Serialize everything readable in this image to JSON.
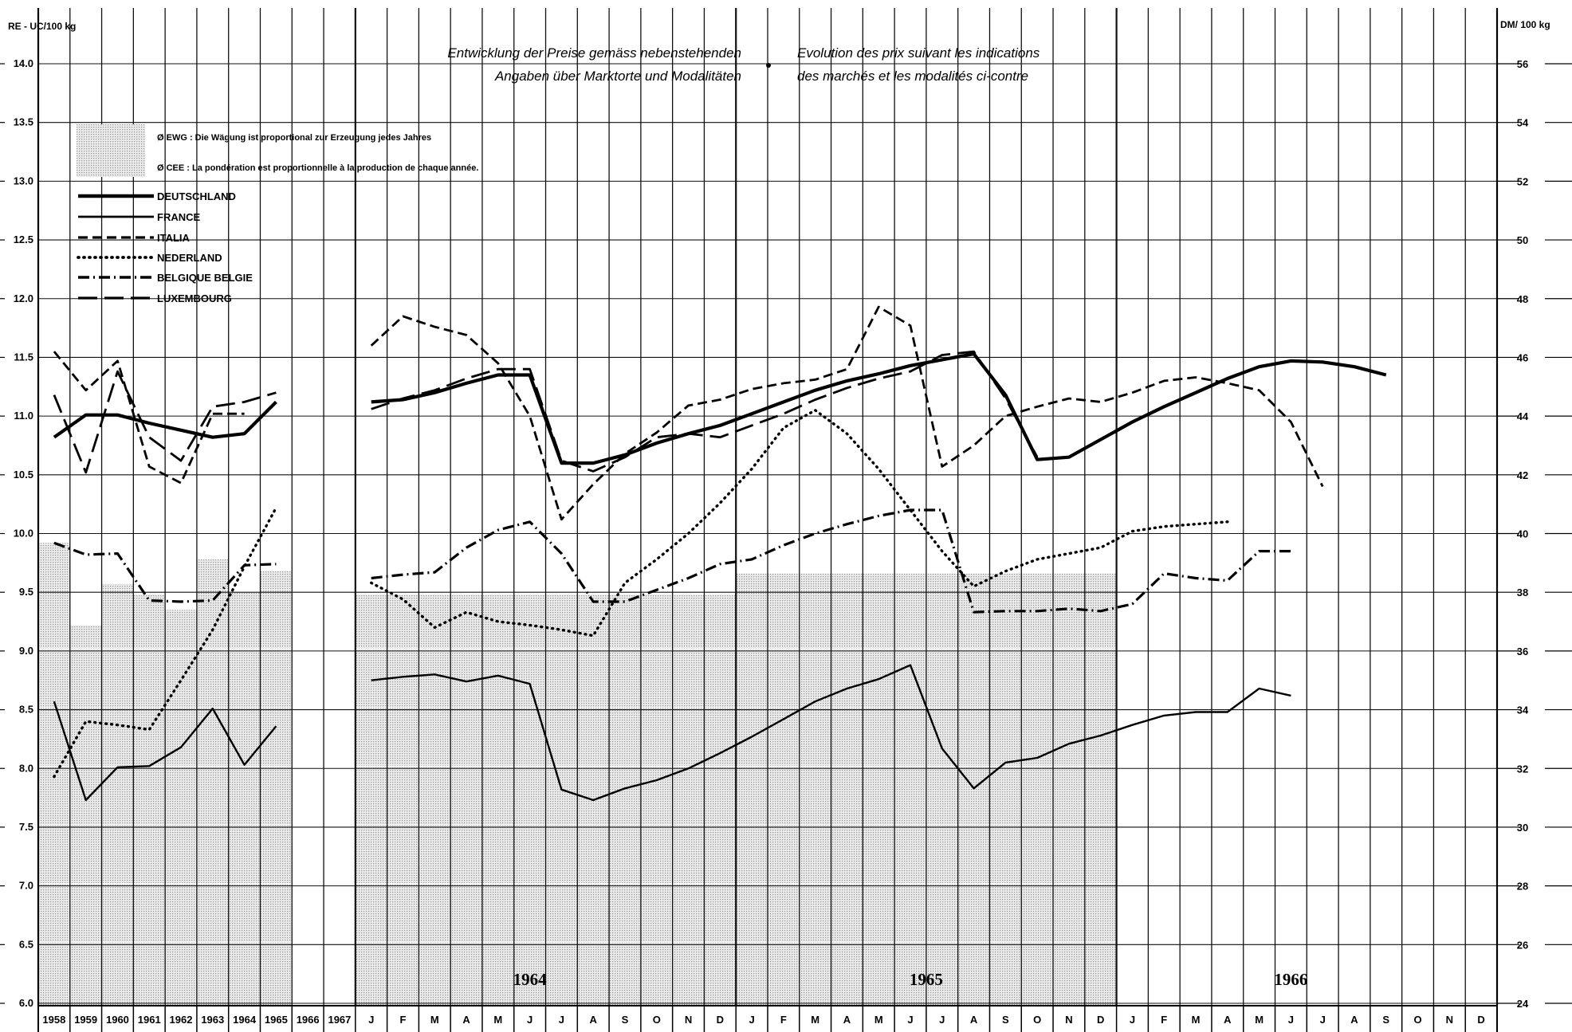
{
  "chart_data": {
    "type": "line",
    "left_axis": {
      "label": "RE - UC/100 kg",
      "ylim": [
        6.0,
        14.5
      ],
      "ticks": [
        "6.0",
        "6.5",
        "7.0",
        "7.5",
        "8.0",
        "8.5",
        "9.0",
        "9.5",
        "10.0",
        "10.5",
        "11.0",
        "11.5",
        "12.0",
        "12.5",
        "13.0",
        "13.5",
        "14.0"
      ]
    },
    "right_axis": {
      "label": "DM/ 100 kg",
      "ticks": [
        "24",
        "26",
        "28",
        "30",
        "32",
        "34",
        "36",
        "38",
        "40",
        "42",
        "44",
        "46",
        "48",
        "50",
        "52",
        "54",
        "56"
      ]
    },
    "title_de": [
      "Entwicklung der Preise gemäss nebenstehenden",
      "Angaben über Marktorte und Modalitäten"
    ],
    "title_fr": [
      "Evolution des prix suivant les indications",
      "des marchés et les modalités ci-contre"
    ],
    "legend": {
      "ewg_line1": "Ø EWG : Die Wägung ist proportional zur Erzeugung jedes Jahres",
      "ewg_line2": "Ø CEE : La pondération est proportionnelle à la production de chaque année.",
      "entries": [
        "DEUTSCHLAND",
        "FRANCE",
        "ITALIA",
        "NEDERLAND",
        "BELGIQUE BELGIE",
        "LUXEMBOURG"
      ]
    },
    "annual_categories": [
      "1958",
      "1959",
      "1960",
      "1961",
      "1962",
      "1963",
      "1964",
      "1965",
      "1966",
      "1967"
    ],
    "monthly_categories": [
      "J",
      "F",
      "M",
      "A",
      "M",
      "J",
      "J",
      "A",
      "S",
      "O",
      "N",
      "D",
      "J",
      "F",
      "M",
      "A",
      "M",
      "J",
      "J",
      "A",
      "S",
      "O",
      "N",
      "D",
      "J",
      "F",
      "M",
      "A",
      "M",
      "J",
      "J",
      "A",
      "S",
      "O",
      "N",
      "D"
    ],
    "year_labels": [
      "1964",
      "1965",
      "1966"
    ],
    "grid": true,
    "series": [
      {
        "name": "Ø EWG / Ø CEE",
        "style": "shaded-area",
        "annual": [
          9.92,
          9.22,
          9.57,
          9.48,
          9.35,
          9.78,
          9.5,
          9.68
        ],
        "monthly": [
          9.48,
          9.48,
          9.48,
          9.48,
          9.48,
          9.48,
          9.48,
          9.48,
          9.48,
          9.48,
          9.48,
          9.48,
          9.66,
          9.66,
          9.66,
          9.66,
          9.66,
          9.66,
          9.66,
          9.66,
          9.66,
          9.66,
          9.66,
          9.66
        ]
      },
      {
        "name": "DEUTSCHLAND",
        "style": "thick-solid",
        "annual": [
          10.82,
          11.01,
          11.01,
          10.94,
          10.88,
          10.82,
          10.85,
          11.12
        ],
        "monthly": [
          11.12,
          11.14,
          11.2,
          11.28,
          11.35,
          11.35,
          10.6,
          10.6,
          10.67,
          10.77,
          10.85,
          10.92,
          11.02,
          11.12,
          11.22,
          11.3,
          11.36,
          11.43,
          11.48,
          11.53,
          11.18,
          10.63,
          10.65,
          10.8,
          10.95,
          11.08,
          11.2,
          11.32,
          11.42,
          11.47,
          11.46,
          11.42,
          11.35
        ]
      },
      {
        "name": "FRANCE",
        "style": "thin-solid",
        "annual": [
          8.57,
          7.73,
          8.01,
          8.02,
          8.18,
          8.51,
          8.03,
          8.36
        ],
        "monthly": [
          8.75,
          8.78,
          8.8,
          8.74,
          8.79,
          8.72,
          7.82,
          7.73,
          7.83,
          7.9,
          8.0,
          8.13,
          8.27,
          8.42,
          8.57,
          8.68,
          8.76,
          8.88,
          8.17,
          7.83,
          8.05,
          8.09,
          8.21,
          8.28,
          8.37,
          8.45,
          8.48,
          8.48,
          8.68,
          8.62
        ]
      },
      {
        "name": "ITALIA",
        "style": "dashed",
        "annual": [
          11.55,
          11.22,
          11.47,
          10.57,
          10.43,
          11.02,
          11.02
        ],
        "monthly": [
          11.6,
          11.85,
          11.76,
          11.69,
          11.45,
          11.0,
          10.12,
          10.42,
          10.68,
          10.86,
          11.09,
          11.14,
          11.23,
          11.28,
          11.31,
          11.4,
          11.93,
          11.77,
          10.57,
          10.75,
          11.0,
          11.08,
          11.15,
          11.12,
          11.2,
          11.3,
          11.33,
          11.28,
          11.22,
          10.95,
          10.4
        ]
      },
      {
        "name": "NEDERLAND",
        "style": "dotted",
        "annual": [
          7.93,
          8.4,
          8.37,
          8.33,
          8.75,
          9.18,
          9.72,
          10.22
        ],
        "monthly": [
          9.58,
          9.44,
          9.2,
          9.33,
          9.25,
          9.22,
          9.18,
          9.13,
          9.58,
          9.78,
          10.0,
          10.26,
          10.55,
          10.9,
          11.05,
          10.85,
          10.55,
          10.2,
          9.85,
          9.55,
          9.68,
          9.78,
          9.83,
          9.88,
          10.02,
          10.06,
          10.08,
          10.1
        ]
      },
      {
        "name": "BELGIQUE BELGIE",
        "style": "dash-dot",
        "annual": [
          9.92,
          9.82,
          9.83,
          9.43,
          9.42,
          9.43,
          9.73,
          9.74
        ],
        "monthly": [
          9.62,
          9.65,
          9.67,
          9.88,
          10.03,
          10.1,
          9.83,
          9.42,
          9.42,
          9.52,
          9.62,
          9.74,
          9.78,
          9.9,
          10.0,
          10.08,
          10.15,
          10.2,
          10.2,
          9.33,
          9.34,
          9.34,
          9.36,
          9.34,
          9.4,
          9.66,
          9.62,
          9.6,
          9.85,
          9.85
        ]
      },
      {
        "name": "LUXEMBOURG",
        "style": "long-dash",
        "annual": [
          11.18,
          10.52,
          11.38,
          10.82,
          10.62,
          11.08,
          11.12,
          11.2
        ],
        "monthly": [
          11.06,
          11.15,
          11.22,
          11.32,
          11.4,
          11.4,
          10.62,
          10.53,
          10.65,
          10.82,
          10.85,
          10.82,
          10.92,
          11.02,
          11.14,
          11.24,
          11.32,
          11.38,
          11.52,
          11.55,
          11.15,
          10.65
        ]
      }
    ]
  }
}
